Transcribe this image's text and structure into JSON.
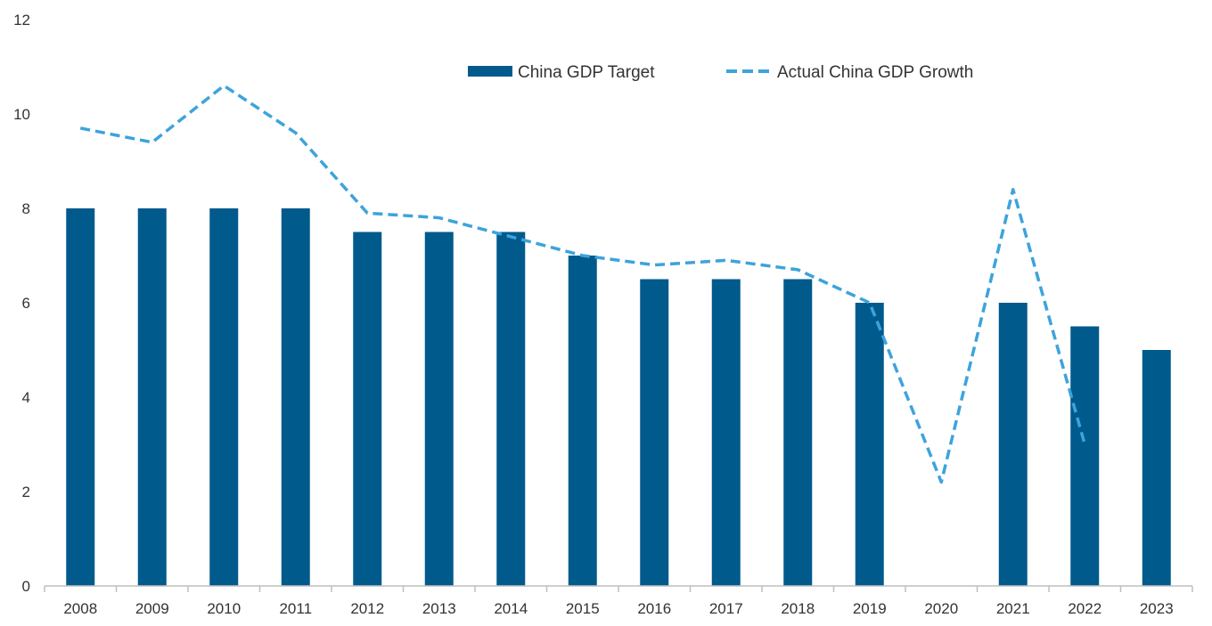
{
  "chart_data": {
    "type": "bar",
    "categories": [
      "2008",
      "2009",
      "2010",
      "2011",
      "2012",
      "2013",
      "2014",
      "2015",
      "2016",
      "2017",
      "2018",
      "2019",
      "2020",
      "2021",
      "2022",
      "2023"
    ],
    "series": [
      {
        "name": "China GDP Target",
        "type": "bar",
        "color": "#005a8c",
        "values": [
          8,
          8,
          8,
          8,
          7.5,
          7.5,
          7.5,
          7,
          6.5,
          6.5,
          6.5,
          6,
          null,
          6,
          5.5,
          5
        ]
      },
      {
        "name": "Actual China GDP Growth",
        "type": "line",
        "style": "dashed",
        "color": "#3da3dc",
        "values": [
          9.7,
          9.4,
          10.6,
          9.6,
          7.9,
          7.8,
          7.4,
          7.0,
          6.8,
          6.9,
          6.7,
          6.0,
          2.2,
          8.4,
          3.0,
          null
        ]
      }
    ],
    "ylim": [
      0,
      12
    ],
    "yticks": [
      0,
      2,
      4,
      6,
      8,
      10,
      12
    ],
    "grid": false,
    "legend": "top-center"
  }
}
